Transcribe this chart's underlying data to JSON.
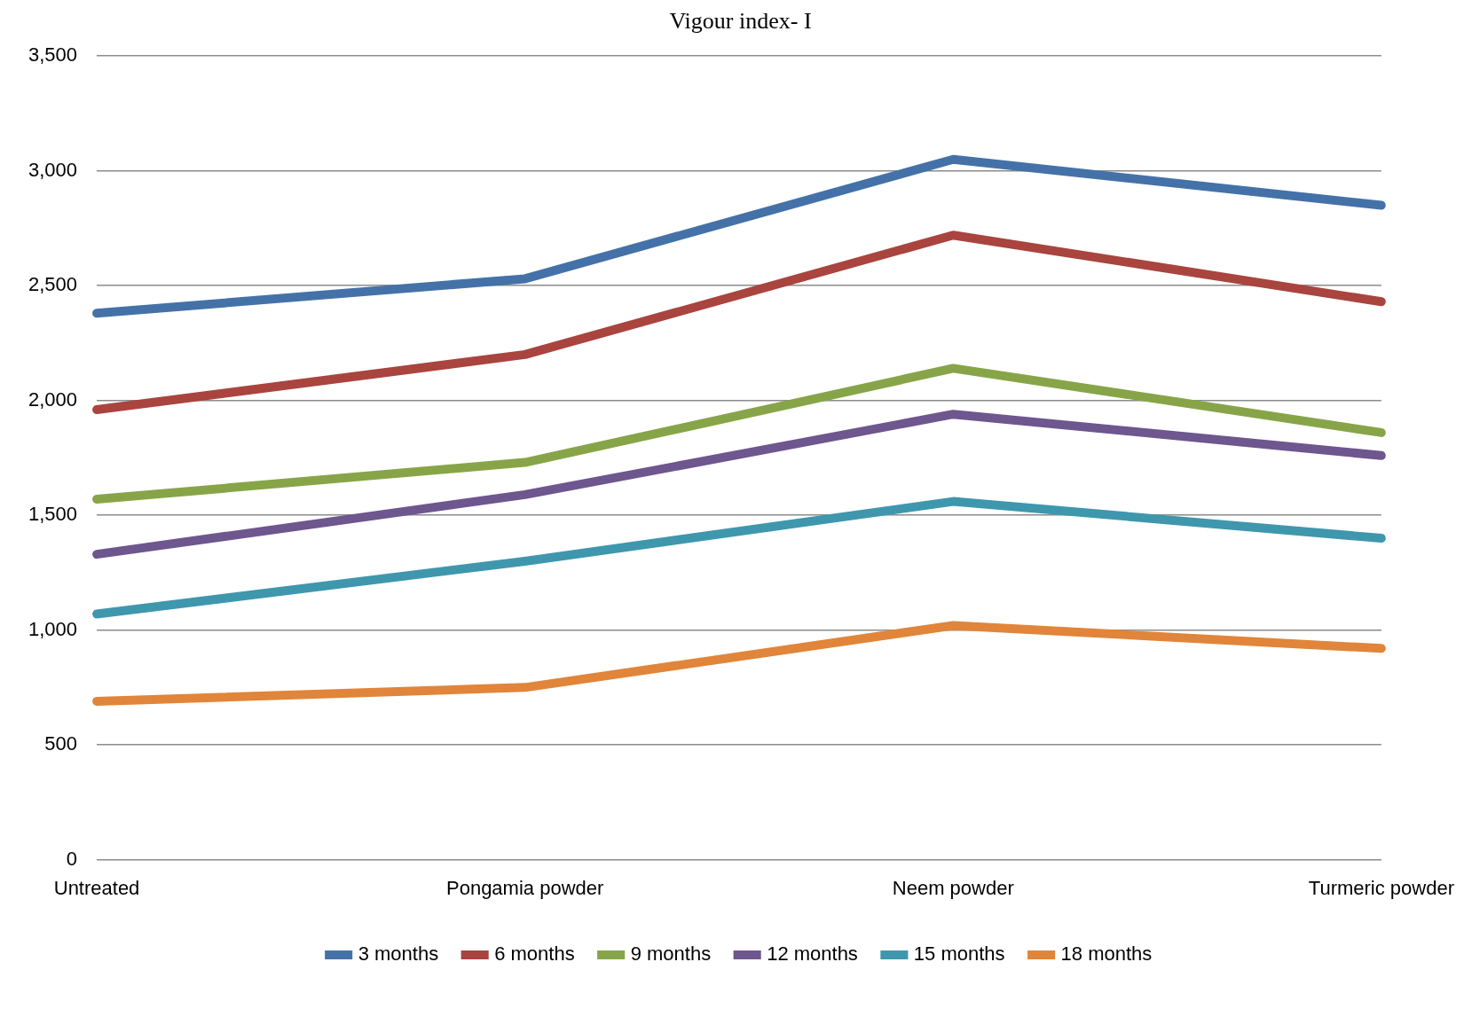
{
  "chart_data": {
    "type": "line",
    "title": "Vigour index- I",
    "categories": [
      "Untreated",
      "Pongamia powder",
      "Neem powder",
      "Turmeric powder"
    ],
    "series": [
      {
        "name": "3 months",
        "color": "#4472a8",
        "values": [
          2380,
          2530,
          3050,
          2850
        ]
      },
      {
        "name": "6 months",
        "color": "#a9443f",
        "values": [
          1960,
          2200,
          2720,
          2430
        ]
      },
      {
        "name": "9 months",
        "color": "#87a548",
        "values": [
          1570,
          1730,
          2140,
          1860
        ]
      },
      {
        "name": "12 months",
        "color": "#6e568e",
        "values": [
          1330,
          1590,
          1940,
          1760
        ]
      },
      {
        "name": "15 months",
        "color": "#3f97ad",
        "values": [
          1070,
          1300,
          1560,
          1400
        ]
      },
      {
        "name": "18 months",
        "color": "#e0853a",
        "values": [
          690,
          750,
          1020,
          920
        ]
      }
    ],
    "ylim": [
      0,
      3500
    ],
    "yticks": [
      0,
      500,
      {
        "value": 1000,
        "label": "1,000"
      },
      {
        "value": 1500,
        "label": "1,500"
      },
      {
        "value": 2000,
        "label": "2,000"
      },
      {
        "value": 2500,
        "label": "2,500"
      },
      {
        "value": 3000,
        "label": "3,000"
      },
      {
        "value": 3500,
        "label": "3,500"
      }
    ],
    "grid": "y",
    "legend": "bottom",
    "marker": "none",
    "line_style": "solid"
  }
}
